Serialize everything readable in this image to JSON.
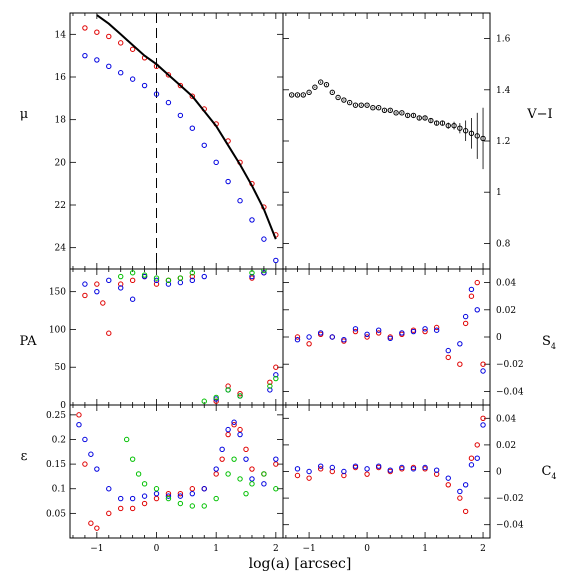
{
  "x_axis": {
    "label": "log(a) [arcsec]",
    "range": [
      -1.45,
      2.12
    ],
    "ticks": [
      -1,
      0,
      1,
      2
    ]
  },
  "panels": {
    "mu": {
      "ylabel": "μ",
      "ylim": [
        25,
        13
      ],
      "ticks": [
        14,
        16,
        18,
        20,
        22,
        24
      ],
      "dashed_x": 0
    },
    "vi": {
      "ylabel": "V−I",
      "ylim": [
        0.7,
        1.7
      ],
      "ticks": [
        0.8,
        1,
        1.2,
        1.4,
        1.6
      ]
    },
    "pa": {
      "ylabel": "PA",
      "ylim": [
        0,
        180
      ],
      "ticks": [
        0,
        50,
        100,
        150
      ]
    },
    "s4": {
      "ylabel": "S",
      "ylabel_sub": "4",
      "ylim": [
        -0.05,
        0.05
      ],
      "ticks": [
        -0.04,
        -0.02,
        0,
        0.02,
        0.04
      ],
      "tick_labels": [
        "−0.04",
        "−0.02",
        "0",
        "0.02",
        "0.04"
      ]
    },
    "eps": {
      "ylabel": "ε",
      "ylim": [
        0,
        0.27
      ],
      "ticks": [
        0.05,
        0.1,
        0.15,
        0.2,
        0.25
      ]
    },
    "c4": {
      "ylabel": "C",
      "ylabel_sub": "4",
      "ylim": [
        -0.05,
        0.05
      ],
      "ticks": [
        -0.04,
        -0.02,
        0,
        0.02,
        0.04
      ],
      "tick_labels": [
        "−0.04",
        "−0.02",
        "0",
        "0.02",
        "0.04"
      ]
    }
  },
  "colors": {
    "red": "#e00000",
    "blue": "#0000e0",
    "green": "#00c000",
    "black": "#000000"
  },
  "chart_data": [
    {
      "type": "scatter",
      "panel": "mu",
      "series": [
        {
          "color": "red",
          "x": [
            -1.2,
            -1.0,
            -0.8,
            -0.6,
            -0.4,
            -0.2,
            0.0,
            0.2,
            0.4,
            0.6,
            0.8,
            1.0,
            1.2,
            1.4,
            1.6,
            1.8,
            2.0
          ],
          "y": [
            13.7,
            13.9,
            14.1,
            14.4,
            14.7,
            15.1,
            15.5,
            15.9,
            16.4,
            16.9,
            17.5,
            18.2,
            19.0,
            20.0,
            21.0,
            22.1,
            23.4
          ]
        },
        {
          "color": "blue",
          "x": [
            -1.2,
            -1.0,
            -0.8,
            -0.6,
            -0.4,
            -0.2,
            0.0,
            0.2,
            0.4,
            0.6,
            0.8,
            1.0,
            1.2,
            1.4,
            1.6,
            1.8,
            2.0
          ],
          "y": [
            15.0,
            15.2,
            15.5,
            15.8,
            16.1,
            16.4,
            16.8,
            17.2,
            17.8,
            18.4,
            19.2,
            20.0,
            20.9,
            21.8,
            22.7,
            23.6,
            24.6
          ]
        },
        {
          "color": "black",
          "line": true,
          "x": [
            -1.0,
            -0.8,
            -0.6,
            -0.4,
            -0.2,
            0.0,
            0.2,
            0.4,
            0.6,
            0.8,
            1.0,
            1.2,
            1.4,
            1.6,
            1.8,
            2.0
          ],
          "y": [
            13.1,
            13.5,
            14.0,
            14.5,
            15.0,
            15.4,
            15.9,
            16.4,
            16.9,
            17.6,
            18.3,
            19.2,
            20.1,
            21.1,
            22.2,
            23.6
          ]
        }
      ]
    },
    {
      "type": "scatter",
      "panel": "vi",
      "series": [
        {
          "color": "black",
          "errorbars": true,
          "x": [
            -1.3,
            -1.2,
            -1.1,
            -1.0,
            -0.9,
            -0.8,
            -0.7,
            -0.6,
            -0.5,
            -0.4,
            -0.3,
            -0.2,
            -0.1,
            0.0,
            0.1,
            0.2,
            0.3,
            0.4,
            0.5,
            0.6,
            0.7,
            0.8,
            0.9,
            1.0,
            1.1,
            1.2,
            1.3,
            1.4,
            1.5,
            1.6,
            1.7,
            1.8,
            1.9,
            2.0
          ],
          "y": [
            1.38,
            1.38,
            1.38,
            1.39,
            1.41,
            1.43,
            1.42,
            1.39,
            1.37,
            1.36,
            1.35,
            1.34,
            1.34,
            1.34,
            1.33,
            1.33,
            1.32,
            1.32,
            1.31,
            1.31,
            1.3,
            1.3,
            1.29,
            1.29,
            1.28,
            1.27,
            1.27,
            1.26,
            1.26,
            1.25,
            1.24,
            1.23,
            1.22,
            1.21
          ],
          "err": [
            0.003,
            0.003,
            0.003,
            0.003,
            0.003,
            0.003,
            0.003,
            0.003,
            0.003,
            0.003,
            0.003,
            0.003,
            0.003,
            0.003,
            0.003,
            0.003,
            0.004,
            0.004,
            0.004,
            0.004,
            0.005,
            0.005,
            0.006,
            0.006,
            0.007,
            0.008,
            0.01,
            0.012,
            0.015,
            0.02,
            0.04,
            0.06,
            0.09,
            0.12
          ]
        }
      ]
    },
    {
      "type": "scatter",
      "panel": "pa",
      "series": [
        {
          "color": "red",
          "x": [
            -1.2,
            -1.0,
            -0.9,
            -0.8,
            -0.6,
            -0.4,
            -0.2,
            0.0,
            0.2,
            0.4,
            0.6,
            1.0,
            1.2,
            1.4,
            1.6,
            1.8,
            1.9,
            2.0
          ],
          "y": [
            145,
            160,
            135,
            95,
            160,
            165,
            170,
            160,
            165,
            168,
            170,
            5,
            25,
            15,
            168,
            175,
            30,
            50
          ]
        },
        {
          "color": "blue",
          "x": [
            -1.2,
            -1.0,
            -0.8,
            -0.6,
            -0.4,
            -0.2,
            0.0,
            0.2,
            0.4,
            0.6,
            0.8,
            1.0,
            1.2,
            1.4,
            1.6,
            1.8,
            1.9,
            2.0
          ],
          "y": [
            160,
            150,
            165,
            155,
            140,
            170,
            165,
            160,
            162,
            165,
            170,
            8,
            20,
            12,
            170,
            175,
            20,
            40
          ]
        },
        {
          "color": "green",
          "x": [
            -0.6,
            -0.4,
            -0.2,
            0.0,
            0.2,
            0.4,
            0.6,
            0.8,
            1.0,
            1.2,
            1.4,
            1.6,
            1.8,
            1.9,
            2.0
          ],
          "y": [
            170,
            175,
            172,
            168,
            165,
            168,
            175,
            5,
            10,
            20,
            12,
            175,
            178,
            25,
            35
          ]
        }
      ]
    },
    {
      "type": "scatter",
      "panel": "s4",
      "series": [
        {
          "color": "red",
          "x": [
            -1.2,
            -1.0,
            -0.8,
            -0.6,
            -0.4,
            -0.2,
            0.0,
            0.2,
            0.4,
            0.6,
            0.8,
            1.0,
            1.2,
            1.4,
            1.6,
            1.7,
            1.8,
            1.9,
            2.0
          ],
          "y": [
            0.0,
            -0.005,
            0.002,
            0.0,
            -0.003,
            0.004,
            0.0,
            0.003,
            0.0,
            0.002,
            0.005,
            0.004,
            0.007,
            -0.015,
            -0.02,
            0.01,
            0.03,
            0.04,
            -0.02
          ]
        },
        {
          "color": "blue",
          "x": [
            -1.2,
            -1.0,
            -0.8,
            -0.6,
            -0.4,
            -0.2,
            0.0,
            0.2,
            0.4,
            0.6,
            0.8,
            1.0,
            1.2,
            1.4,
            1.6,
            1.7,
            1.8,
            1.9,
            2.0
          ],
          "y": [
            -0.002,
            0.0,
            0.003,
            0.0,
            -0.002,
            0.006,
            0.002,
            0.005,
            -0.001,
            0.003,
            0.004,
            0.006,
            0.005,
            -0.01,
            -0.005,
            0.015,
            0.035,
            0.02,
            -0.025
          ]
        }
      ]
    },
    {
      "type": "scatter",
      "panel": "eps",
      "series": [
        {
          "color": "red",
          "x": [
            -1.3,
            -1.2,
            -1.1,
            -1.0,
            -0.8,
            -0.6,
            -0.4,
            -0.2,
            0.0,
            0.2,
            0.4,
            0.6,
            0.8,
            1.0,
            1.1,
            1.2,
            1.3,
            1.4,
            1.5,
            1.6,
            1.8,
            2.0
          ],
          "y": [
            0.25,
            0.15,
            0.03,
            0.02,
            0.05,
            0.06,
            0.06,
            0.07,
            0.08,
            0.09,
            0.09,
            0.1,
            0.1,
            0.13,
            0.16,
            0.21,
            0.23,
            0.22,
            0.18,
            0.14,
            0.13,
            0.15
          ]
        },
        {
          "color": "blue",
          "x": [
            -1.3,
            -1.2,
            -1.1,
            -1.0,
            -0.8,
            -0.6,
            -0.4,
            -0.2,
            0.0,
            0.2,
            0.4,
            0.6,
            0.8,
            1.0,
            1.1,
            1.2,
            1.3,
            1.4,
            1.5,
            1.6,
            1.8,
            2.0
          ],
          "y": [
            0.23,
            0.2,
            0.17,
            0.14,
            0.1,
            0.08,
            0.08,
            0.085,
            0.09,
            0.085,
            0.085,
            0.09,
            0.1,
            0.14,
            0.18,
            0.22,
            0.235,
            0.21,
            0.16,
            0.12,
            0.11,
            0.16
          ]
        },
        {
          "color": "green",
          "x": [
            -0.5,
            -0.4,
            -0.3,
            -0.2,
            0.0,
            0.2,
            0.4,
            0.6,
            0.8,
            1.0,
            1.2,
            1.3,
            1.4,
            1.5,
            1.6,
            1.8,
            2.0
          ],
          "y": [
            0.2,
            0.16,
            0.13,
            0.11,
            0.1,
            0.08,
            0.07,
            0.065,
            0.065,
            0.08,
            0.13,
            0.16,
            0.12,
            0.09,
            0.11,
            0.13,
            0.1
          ]
        }
      ]
    },
    {
      "type": "scatter",
      "panel": "c4",
      "series": [
        {
          "color": "red",
          "x": [
            -1.2,
            -1.0,
            -0.8,
            -0.6,
            -0.4,
            -0.2,
            0.0,
            0.2,
            0.4,
            0.6,
            0.8,
            1.0,
            1.2,
            1.4,
            1.6,
            1.7,
            1.8,
            1.9,
            2.0
          ],
          "y": [
            -0.003,
            -0.005,
            0.002,
            0.0,
            -0.003,
            0.003,
            -0.002,
            0.003,
            0.0,
            0.002,
            0.003,
            0.002,
            -0.002,
            -0.01,
            -0.02,
            -0.03,
            0.01,
            0.02,
            0.04
          ]
        },
        {
          "color": "blue",
          "x": [
            -1.2,
            -1.0,
            -0.8,
            -0.6,
            -0.4,
            -0.2,
            0.0,
            0.2,
            0.4,
            0.6,
            0.8,
            1.0,
            1.2,
            1.4,
            1.6,
            1.7,
            1.8,
            1.9,
            2.0
          ],
          "y": [
            0.002,
            0.0,
            0.004,
            0.003,
            0.0,
            0.004,
            0.002,
            0.004,
            0.001,
            0.003,
            0.002,
            0.003,
            0.001,
            -0.005,
            -0.015,
            -0.01,
            0.005,
            0.01,
            0.035
          ]
        }
      ]
    }
  ]
}
